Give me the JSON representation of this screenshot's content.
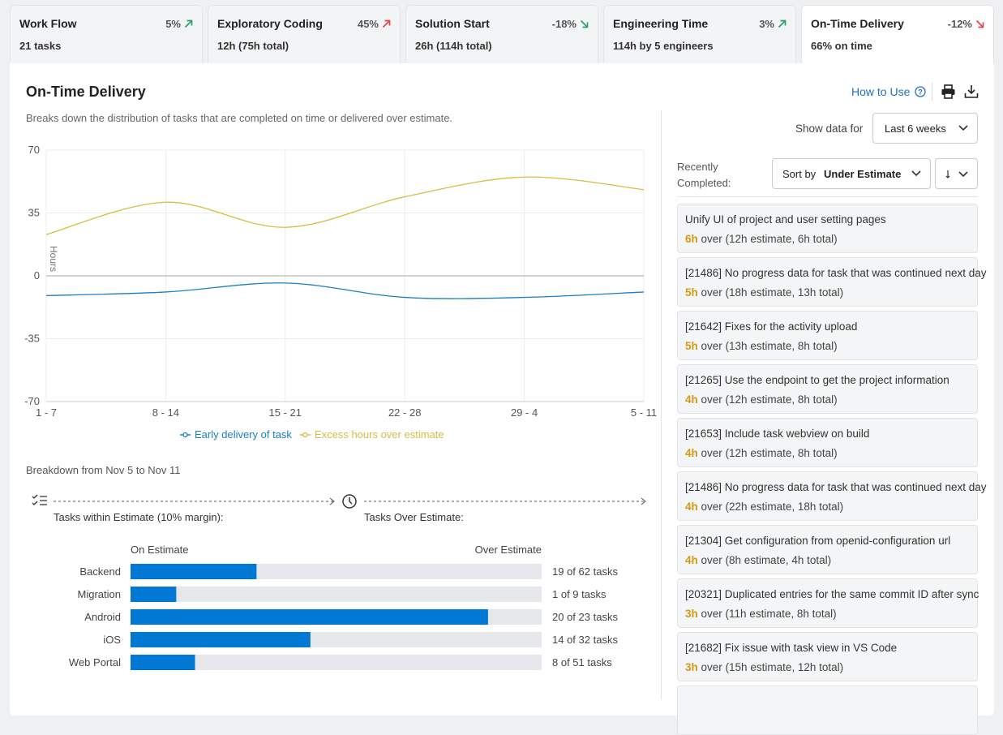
{
  "tabs": [
    {
      "title": "Work Flow",
      "change": "5%",
      "arrow": "up",
      "color": "#2e9e6b",
      "subtitle": "21 tasks"
    },
    {
      "title": "Exploratory Coding",
      "change": "45%",
      "arrow": "up",
      "color": "#e0474c",
      "subtitle": "12h (75h total)"
    },
    {
      "title": "Solution Start",
      "change": "-18%",
      "arrow": "down",
      "color": "#2e9e6b",
      "subtitle": "26h (114h total)"
    },
    {
      "title": "Engineering Time",
      "change": "3%",
      "arrow": "up",
      "color": "#2e9e6b",
      "subtitle": "114h by 5 engineers"
    },
    {
      "title": "On-Time Delivery",
      "change": "-12%",
      "arrow": "down",
      "color": "#e0474c",
      "subtitle": "66% on time"
    }
  ],
  "panel": {
    "title": "On-Time Delivery",
    "description": "Breaks down the distribution of tasks that are completed on time or delivered over estimate.",
    "how_to_use": "How to Use",
    "show_data_label": "Show data for",
    "range": "Last 6 weeks"
  },
  "chart_data": [
    {
      "type": "line",
      "y_label": "Hours",
      "categories": [
        "1 - 7",
        "8 - 14",
        "15 - 21",
        "22 - 28",
        "29 - 4",
        "5 - 11"
      ],
      "ylim": [
        -70,
        70
      ],
      "yticks": [
        -70,
        -35,
        0,
        35,
        70
      ],
      "grid": true,
      "series": [
        {
          "name": "Early delivery of task",
          "color": "#1a7fc4",
          "values": [
            -11,
            -9,
            -4,
            -12,
            -12,
            -9
          ]
        },
        {
          "name": "Excess hours over estimate",
          "color": "#d8bd45",
          "values": [
            23,
            41,
            27,
            44,
            55,
            48
          ]
        }
      ]
    },
    {
      "type": "hbar",
      "x_label_left": "On Estimate",
      "x_label_right": "Over Estimate",
      "color": "#0078d4",
      "track_color": "#e6e7ea",
      "categories": [
        "Backend",
        "Migration",
        "Android",
        "iOS",
        "Web Portal"
      ],
      "values": [
        19,
        1,
        20,
        14,
        8
      ],
      "totals": [
        62,
        9,
        23,
        32,
        51
      ],
      "value_labels": [
        "19 of 62 tasks",
        "1 of 9 tasks",
        "20 of 23 tasks",
        "14 of 32 tasks",
        "8 of 51 tasks"
      ]
    }
  ],
  "breakdown": {
    "title": "Breakdown from Nov 5 to Nov 11",
    "within_label": "Tasks within Estimate (10% margin):",
    "over_label": "Tasks Over Estimate:"
  },
  "recent": {
    "label": "Recently Completed:",
    "sort_prefix": "Sort by",
    "sort_field": "Under Estimate",
    "items": [
      {
        "title": "Unify UI of project and user setting pages",
        "hours": "6h",
        "detail": "over (12h estimate, 6h total)"
      },
      {
        "title": "[21486] No progress data for task that was continued next day",
        "hours": "5h",
        "detail": "over (18h estimate, 13h total)"
      },
      {
        "title": "[21642] Fixes for the activity upload",
        "hours": "5h",
        "detail": "over (13h estimate, 8h total)"
      },
      {
        "title": "[21265] Use the endpoint to get the project information",
        "hours": "4h",
        "detail": "over (12h estimate, 8h total)"
      },
      {
        "title": "[21653] Include task webview on build",
        "hours": "4h",
        "detail": "over (12h estimate, 8h total)"
      },
      {
        "title": "[21486] No progress data for task that was continued next day",
        "hours": "4h",
        "detail": "over (22h estimate, 18h total)"
      },
      {
        "title": "[21304] Get configuration from openid-configuration url",
        "hours": "4h",
        "detail": "over (8h estimate, 4h total)"
      },
      {
        "title": "[20321] Duplicated entries for the same commit ID after sync",
        "hours": "3h",
        "detail": "over (11h estimate, 8h total)"
      },
      {
        "title": "[21682] Fix issue with task view in VS Code",
        "hours": "3h",
        "detail": "over (15h estimate, 12h total)"
      }
    ]
  }
}
